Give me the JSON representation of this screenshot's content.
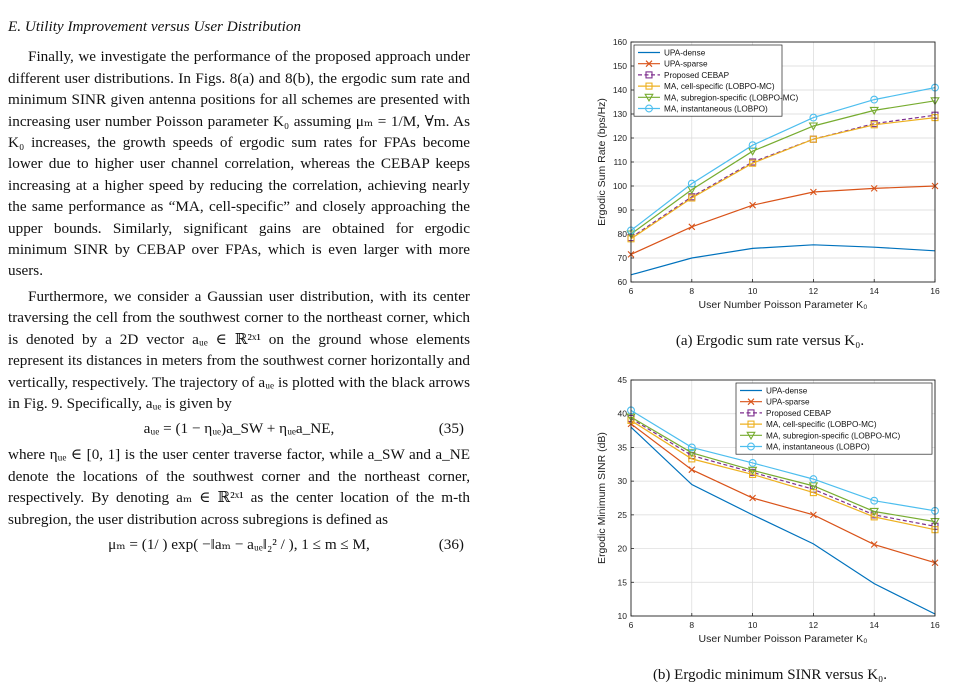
{
  "text": {
    "section_heading": "E. Utility Improvement versus User Distribution",
    "para1": "Finally, we investigate the performance of the proposed approach under different user distributions. In Figs. 8(a) and 8(b), the ergodic sum rate and minimum SINR given antenna positions for all schemes are presented with increasing user number Poisson parameter K₀ assuming μₘ = 1/M, ∀m. As K₀ increases, the growth speeds of ergodic sum rates for FPAs become lower due to higher user channel correlation, whereas the CEBAP keeps increasing at a higher speed by reducing the correlation, achieving nearly the same performance as “MA, cell-specific” and closely approaching the upper bounds. Similarly, significant gains are obtained for ergodic minimum SINR by CEBAP over FPAs, which is even larger with more users.",
    "para2": "Furthermore, we consider a Gaussian user distribution, with its center traversing the cell from the southwest corner to the northeast corner, which is denoted by a 2D vector aᵤₑ ∈ ℝ²ˣ¹ on the ground whose elements represent its distances in meters from the southwest corner horizontally and vertically, respectively. The trajectory of aᵤₑ is plotted with the black arrows in Fig. 9. Specifically, aᵤₑ is given by",
    "eq35": "aᵤₑ = (1 − ηᵤₑ)a_SW + ηᵤₑa_NE,",
    "eq35_no": "(35)",
    "para3": "where ηᵤₑ ∈ [0, 1] is the user center traverse factor, while a_SW and a_NE denote the locations of the southwest corner and the northeast corner, respectively. By denoting aₘ ∈ ℝ²ˣ¹ as the center location of the m-th subregion, the user distribution across subregions is defined as",
    "eq36": "μₘ = (1/ ) exp( −‖aₘ − aᵤₑ‖₂² / ),   1 ≤ m ≤ M,",
    "eq36_no": "(36)"
  },
  "captions": {
    "a": "(a) Ergodic sum rate versus K₀.",
    "b": "(b) Ergodic minimum SINR versus K₀."
  },
  "colors": {
    "UPA-dense": "#0072BD",
    "UPA-sparse": "#D95319",
    "Proposed CEBAP": "#7E2F8E",
    "MA, cell-specific (LOBPO-MC)": "#EDB120",
    "MA, subregion-specific (LOBPO-MC)": "#77AC30",
    "MA, instantaneous (LOBPO)": "#4DBEEE"
  },
  "chart_data": [
    {
      "type": "line",
      "xlabel": "User Number Poisson Parameter K₀",
      "ylabel": "Ergodic Sum Rate (bps/Hz)",
      "x": [
        6,
        8,
        10,
        12,
        14,
        16
      ],
      "xlim": [
        6,
        16
      ],
      "ylim": [
        60,
        160
      ],
      "xticks": [
        6,
        8,
        10,
        12,
        14,
        16
      ],
      "yticks": [
        60,
        70,
        80,
        90,
        100,
        110,
        120,
        130,
        140,
        150,
        160
      ],
      "grid": true,
      "legend": "top-left",
      "series": [
        {
          "name": "UPA-dense",
          "marker": "none",
          "values": [
            63,
            70,
            74,
            75.5,
            74.5,
            73
          ]
        },
        {
          "name": "UPA-sparse",
          "marker": "x",
          "values": [
            71.5,
            83,
            92,
            97.5,
            99,
            100
          ]
        },
        {
          "name": "Proposed CEBAP",
          "marker": "square",
          "dashed": true,
          "values": [
            78.5,
            95.5,
            110,
            119.5,
            126,
            129.5
          ]
        },
        {
          "name": "MA, cell-specific (LOBPO-MC)",
          "marker": "square",
          "values": [
            78,
            95,
            109.5,
            119.5,
            125.5,
            128.5
          ]
        },
        {
          "name": "MA, subregion-specific (LOBPO-MC)",
          "marker": "triangle-down",
          "values": [
            80,
            98.5,
            114.5,
            125,
            131.5,
            135.5
          ]
        },
        {
          "name": "MA, instantaneous (LOBPO)",
          "marker": "circle",
          "values": [
            81.5,
            101,
            117,
            128.5,
            136,
            141
          ]
        }
      ]
    },
    {
      "type": "line",
      "xlabel": "User Number Poisson Parameter K₀",
      "ylabel": "Ergodic Minimum SINR (dB)",
      "x": [
        6,
        8,
        10,
        12,
        14,
        16
      ],
      "xlim": [
        6,
        16
      ],
      "ylim": [
        10,
        45
      ],
      "xticks": [
        6,
        8,
        10,
        12,
        14,
        16
      ],
      "yticks": [
        10,
        15,
        20,
        25,
        30,
        35,
        40,
        45
      ],
      "grid": true,
      "legend": "top-right",
      "series": [
        {
          "name": "UPA-dense",
          "marker": "none",
          "values": [
            38,
            29.5,
            25,
            20.7,
            14.8,
            10.3
          ]
        },
        {
          "name": "UPA-sparse",
          "marker": "x",
          "values": [
            38.5,
            31.7,
            27.5,
            25,
            20.6,
            17.9
          ]
        },
        {
          "name": "Proposed CEBAP",
          "marker": "square",
          "dashed": true,
          "values": [
            39.3,
            33.8,
            31.3,
            28.8,
            25,
            23.3
          ]
        },
        {
          "name": "MA, cell-specific (LOBPO-MC)",
          "marker": "square",
          "values": [
            39,
            33.3,
            31,
            28.3,
            24.7,
            22.8
          ]
        },
        {
          "name": "MA, subregion-specific (LOBPO-MC)",
          "marker": "triangle-down",
          "values": [
            39.5,
            34.2,
            31.6,
            29.3,
            25.5,
            24
          ]
        },
        {
          "name": "MA, instantaneous (LOBPO)",
          "marker": "circle",
          "values": [
            40.5,
            35,
            32.7,
            30.3,
            27.1,
            25.6
          ]
        }
      ]
    }
  ]
}
